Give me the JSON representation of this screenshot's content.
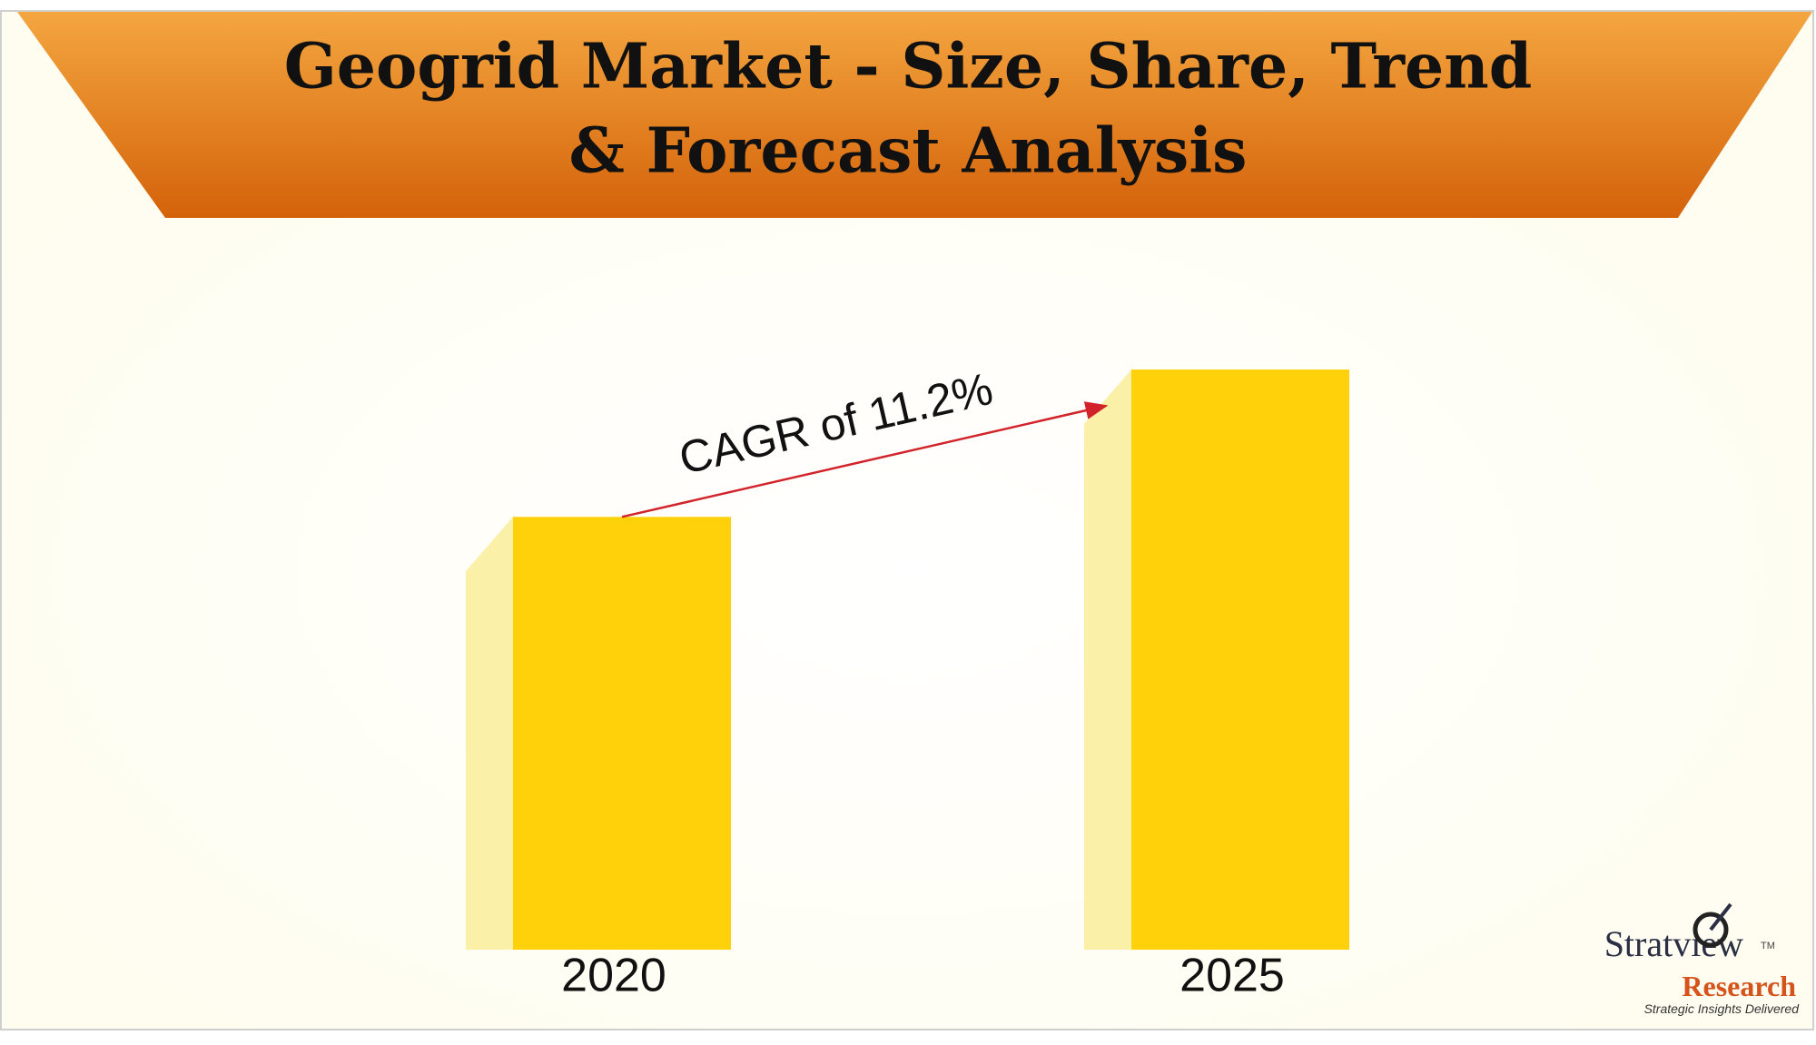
{
  "chart_data": {
    "type": "bar",
    "title": [
      "Geogrid Market - Size, Share, Trend",
      "& Forecast Analysis"
    ],
    "annotation": "CAGR of 11.2%",
    "categories": [
      "2020",
      "2025"
    ],
    "values": [
      373,
      500
    ],
    "ylim": [
      0,
      500
    ],
    "color": "#ffd10a"
  },
  "brand": {
    "name": "Stratview",
    "mark": "TM",
    "subname": "Research",
    "tagline": "Strategic Insights Delivered"
  }
}
